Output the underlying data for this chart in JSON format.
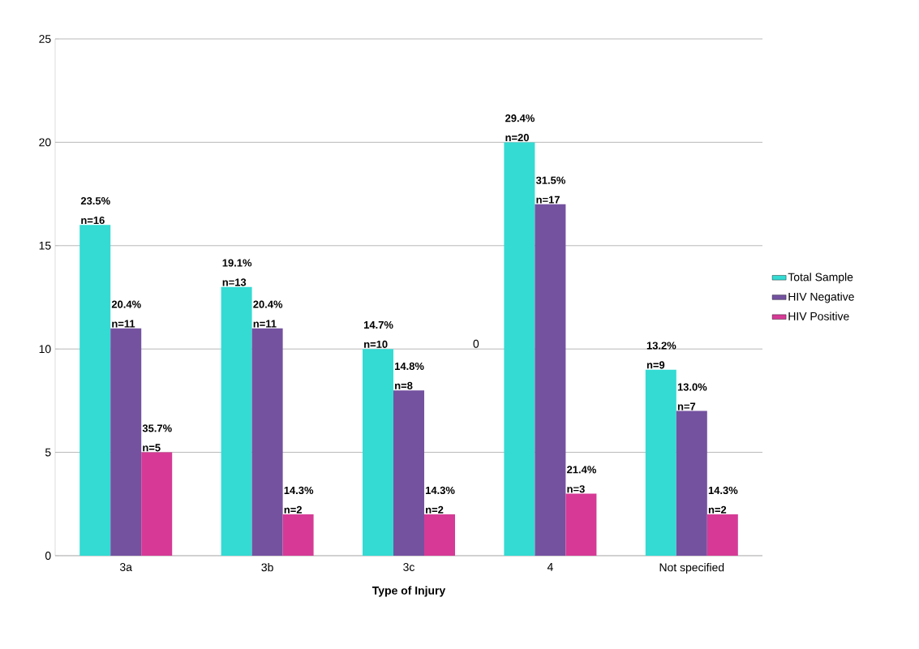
{
  "chart_data": {
    "type": "bar",
    "xlabel": "Type of Injury",
    "categories": [
      "3a",
      "3b",
      "3c",
      "4",
      "Not specified"
    ],
    "series": [
      {
        "name": "Total Sample",
        "color": "#33dbd3",
        "values": [
          16,
          13,
          10,
          20,
          9
        ],
        "value_labels": [
          "23.5% n=16",
          "19.1% n=13",
          "14.7% n=10",
          "29.4% n=20",
          "13.2% n=9"
        ]
      },
      {
        "name": "HIV Negative",
        "color": "#7452a0",
        "values": [
          11,
          11,
          8,
          17,
          7
        ],
        "value_labels": [
          "20.4% n=11",
          "20.4% n=11",
          "14.8% n=8",
          "31.5% n=17",
          "13.0% n=7"
        ]
      },
      {
        "name": "HIV Positive",
        "color": "#d63a96",
        "values": [
          5,
          2,
          2,
          3,
          2
        ],
        "value_labels": [
          "35.7% n=5",
          "14.3% n=2",
          "14.3% n=2",
          "21.4% n=3",
          "14.3% n=2"
        ]
      }
    ],
    "ylim": [
      0,
      25
    ],
    "yticks": [
      0,
      5,
      10,
      15,
      20,
      25
    ],
    "grid": "y",
    "legend": "right",
    "annotations": [
      "0"
    ]
  }
}
